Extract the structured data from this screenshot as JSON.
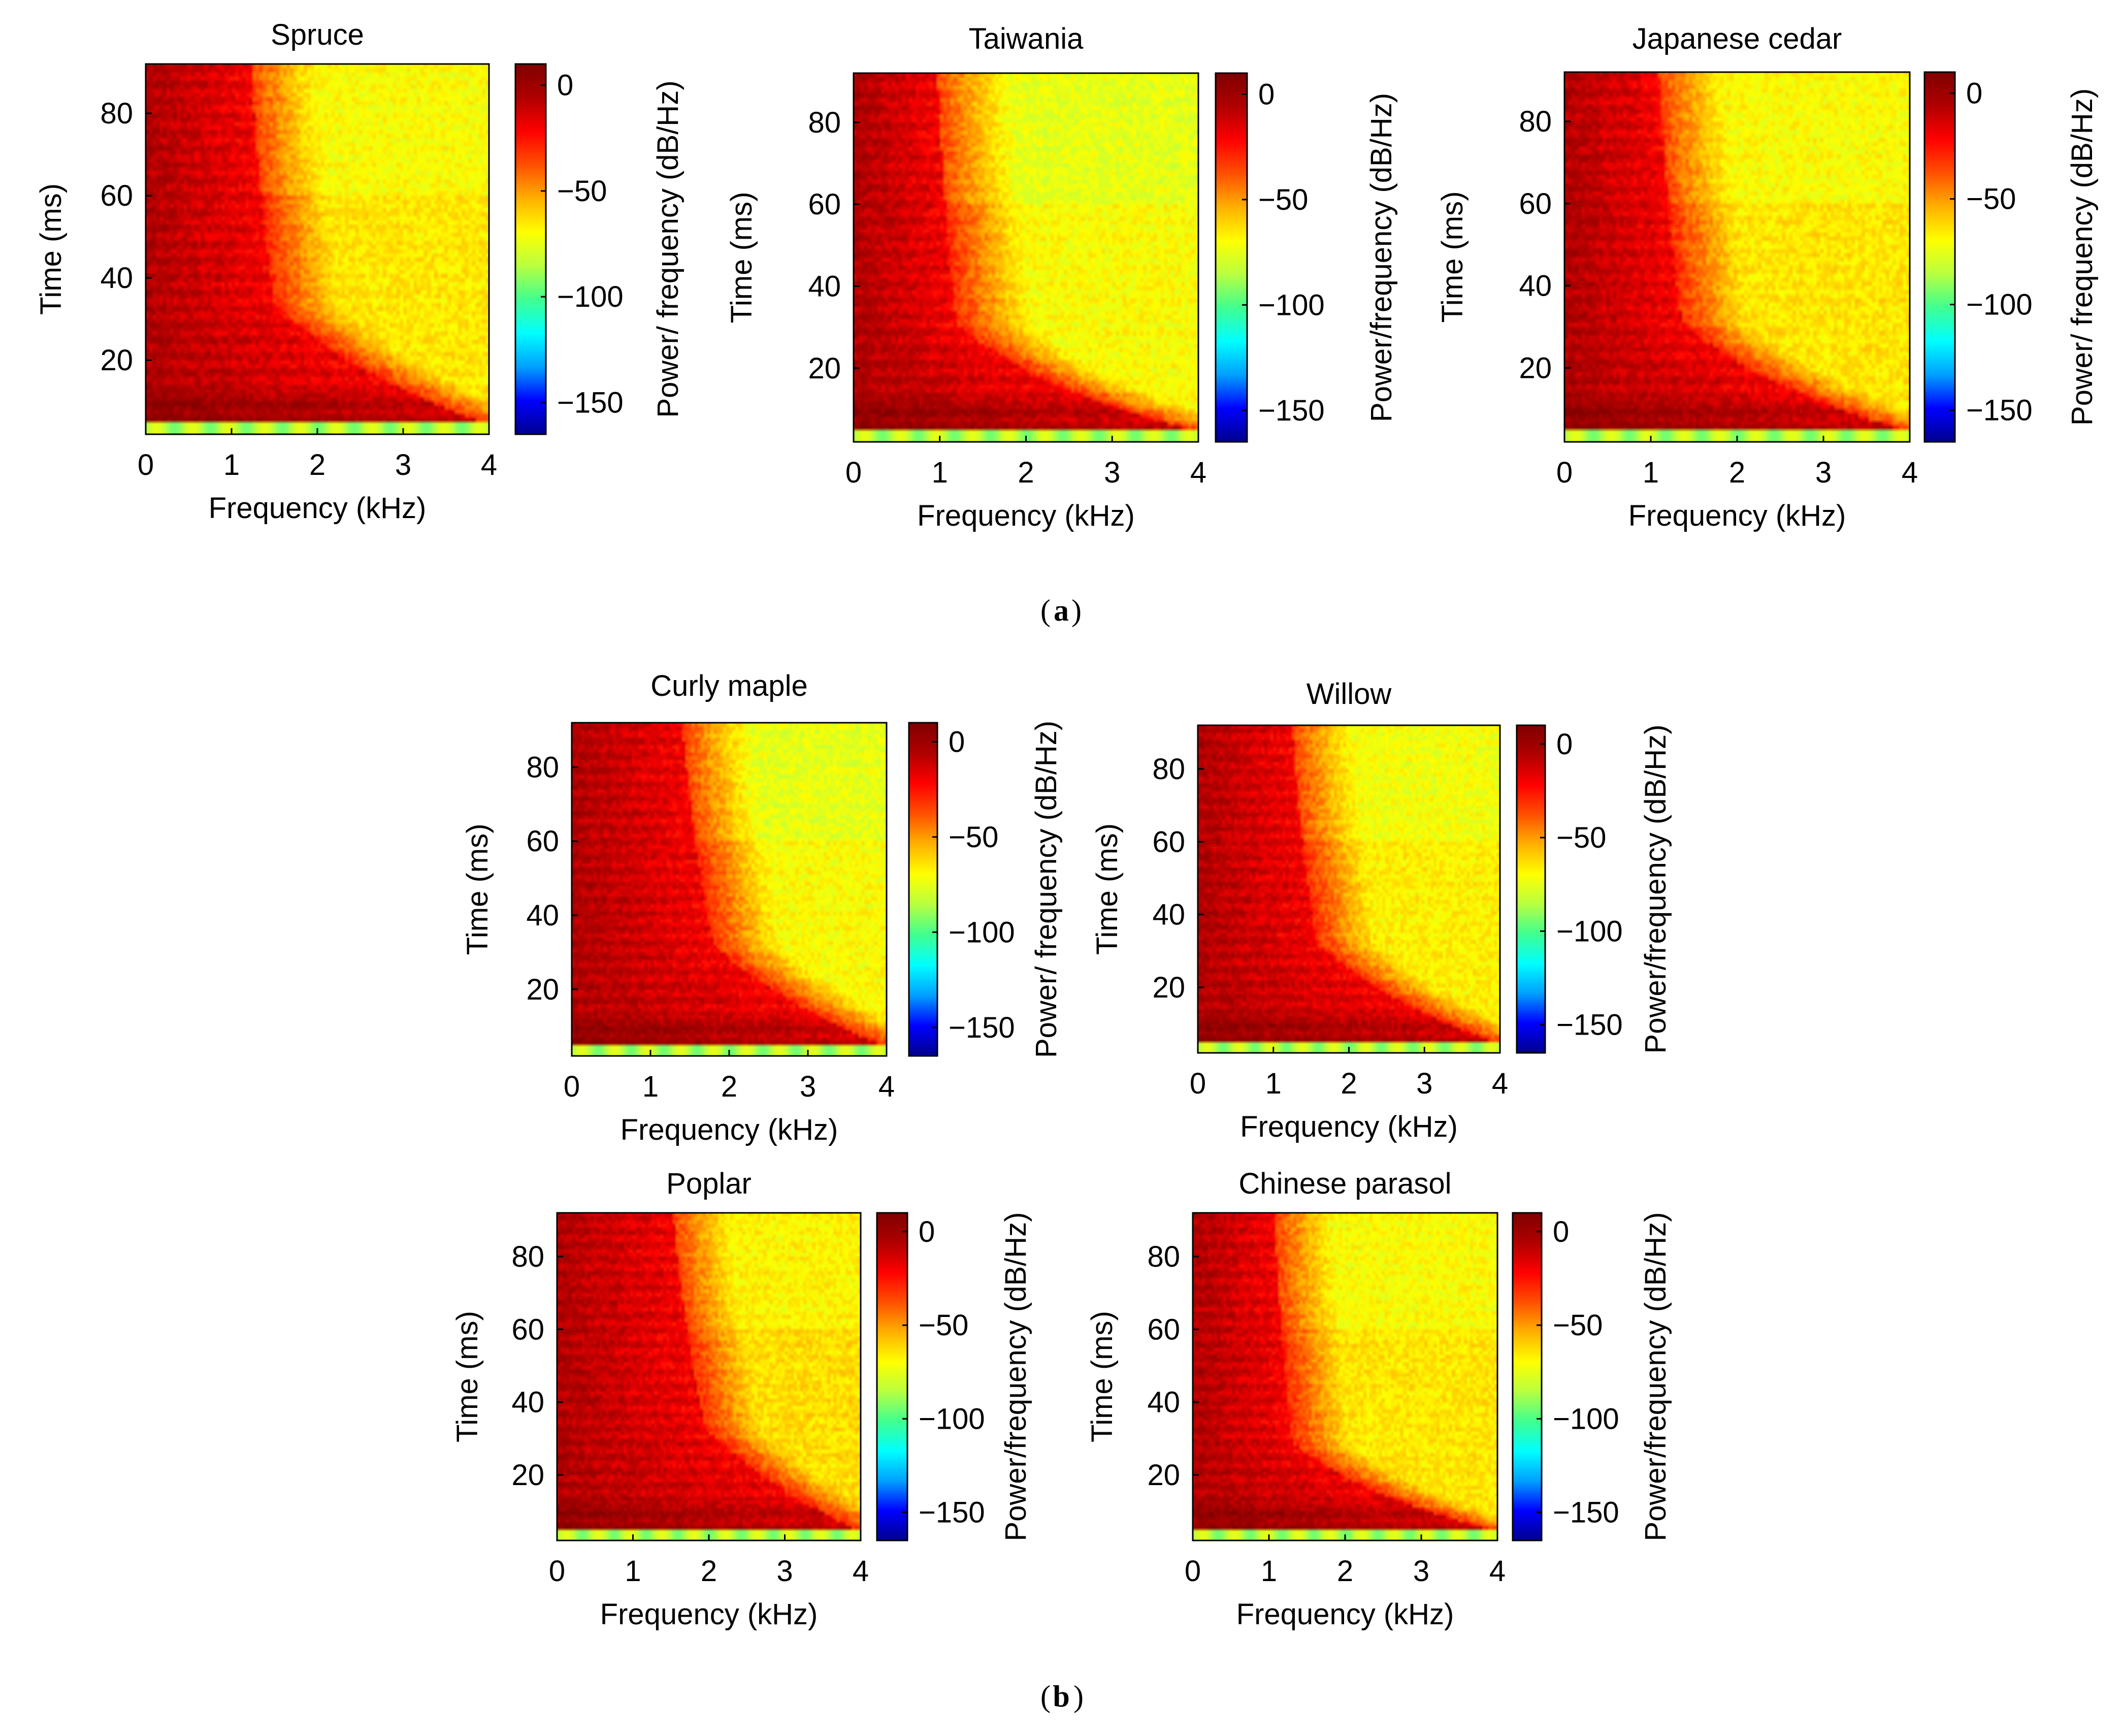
{
  "panel_labels": {
    "a": "a",
    "b": "b"
  },
  "colors": {
    "colormap": [
      "#00008f",
      "#0000ff",
      "#00a0ff",
      "#00ffff",
      "#40ff90",
      "#b8ff40",
      "#ffff00",
      "#ffb000",
      "#ff5000",
      "#ff0000",
      "#b00000",
      "#800000"
    ]
  },
  "chart_data": [
    {
      "type": "heatmap",
      "title": "Spruce",
      "panel": "a",
      "xlabel": "Frequency (kHz)",
      "ylabel": "Time (ms)",
      "xlim": [
        0,
        4
      ],
      "ylim": [
        2,
        92
      ],
      "x_ticks": [
        "0",
        "1",
        "2",
        "3",
        "4"
      ],
      "y_ticks": [
        "20",
        "40",
        "60",
        "80"
      ],
      "colorbar": {
        "label": "Power/ frequency (dB/Hz)",
        "range": [
          -165,
          10
        ],
        "ticks": [
          "0",
          "−50",
          "−100",
          "−150"
        ]
      },
      "pattern": {
        "red_band_khz": 1.0,
        "tail_khz": 1.8,
        "tail_time_ms": 30,
        "base_db": -60
      }
    },
    {
      "type": "heatmap",
      "title": "Taiwania",
      "panel": "a",
      "xlabel": "Frequency (kHz)",
      "ylabel": "Time (ms)",
      "xlim": [
        0,
        4
      ],
      "ylim": [
        2,
        92
      ],
      "x_ticks": [
        "0",
        "1",
        "2",
        "3",
        "4"
      ],
      "y_ticks": [
        "20",
        "40",
        "60",
        "80"
      ],
      "colorbar": {
        "label": "Power/frequency (dB/Hz)",
        "range": [
          -165,
          10
        ],
        "ticks": [
          "0",
          "−50",
          "−100",
          "−150"
        ]
      },
      "pattern": {
        "red_band_khz": 0.8,
        "tail_khz": 1.4,
        "tail_time_ms": 22,
        "base_db": -65
      }
    },
    {
      "type": "heatmap",
      "title": "Japanese cedar",
      "panel": "a",
      "xlabel": "Frequency (kHz)",
      "ylabel": "Time (ms)",
      "xlim": [
        0,
        4
      ],
      "ylim": [
        2,
        92
      ],
      "x_ticks": [
        "0",
        "1",
        "2",
        "3",
        "4"
      ],
      "y_ticks": [
        "20",
        "40",
        "60",
        "80"
      ],
      "colorbar": {
        "label": "Power/ frequency (dB/Hz)",
        "range": [
          -165,
          10
        ],
        "ticks": [
          "0",
          "−50",
          "−100",
          "−150"
        ]
      },
      "pattern": {
        "red_band_khz": 0.9,
        "tail_khz": 1.6,
        "tail_time_ms": 25,
        "base_db": -60
      }
    },
    {
      "type": "heatmap",
      "title": "Curly maple",
      "panel": "b",
      "xlabel": "Frequency (kHz)",
      "ylabel": "Time (ms)",
      "xlim": [
        0,
        4
      ],
      "ylim": [
        2,
        92
      ],
      "x_ticks": [
        "0",
        "1",
        "2",
        "3",
        "4"
      ],
      "y_ticks": [
        "20",
        "40",
        "60",
        "80"
      ],
      "colorbar": {
        "label": "Power/ frequency (dB/Hz)",
        "range": [
          -165,
          10
        ],
        "ticks": [
          "0",
          "−50",
          "−100",
          "−150"
        ]
      },
      "pattern": {
        "red_band_khz": 1.1,
        "tail_khz": 2.2,
        "tail_time_ms": 35,
        "base_db": -65
      }
    },
    {
      "type": "heatmap",
      "title": "Willow",
      "panel": "b",
      "xlabel": "Frequency (kHz)",
      "ylabel": "Time (ms)",
      "xlim": [
        0,
        4
      ],
      "ylim": [
        2,
        92
      ],
      "x_ticks": [
        "0",
        "1",
        "2",
        "3",
        "4"
      ],
      "y_ticks": [
        "20",
        "40",
        "60",
        "80"
      ],
      "colorbar": {
        "label": "Power/frequency (dB/Hz)",
        "range": [
          -165,
          10
        ],
        "ticks": [
          "0",
          "−50",
          "−100",
          "−150"
        ]
      },
      "pattern": {
        "red_band_khz": 1.0,
        "tail_khz": 1.9,
        "tail_time_ms": 30,
        "base_db": -62
      }
    },
    {
      "type": "heatmap",
      "title": "Poplar",
      "panel": "b",
      "xlabel": "Frequency (kHz)",
      "ylabel": "Time (ms)",
      "xlim": [
        0,
        4
      ],
      "ylim": [
        2,
        92
      ],
      "x_ticks": [
        "0",
        "1",
        "2",
        "3",
        "4"
      ],
      "y_ticks": [
        "20",
        "40",
        "60",
        "80"
      ],
      "colorbar": {
        "label": "Power/frequency (dB/Hz)",
        "range": [
          -165,
          10
        ],
        "ticks": [
          "0",
          "−50",
          "−100",
          "−150"
        ]
      },
      "pattern": {
        "red_band_khz": 1.2,
        "tail_khz": 2.4,
        "tail_time_ms": 40,
        "base_db": -58
      }
    },
    {
      "type": "heatmap",
      "title": "Chinese parasol",
      "panel": "b",
      "xlabel": "Frequency (kHz)",
      "ylabel": "Time (ms)",
      "xlim": [
        0,
        4
      ],
      "ylim": [
        2,
        92
      ],
      "x_ticks": [
        "0",
        "1",
        "2",
        "3",
        "4"
      ],
      "y_ticks": [
        "20",
        "40",
        "60",
        "80"
      ],
      "colorbar": {
        "label": "Power/frequency (dB/Hz)",
        "range": [
          -165,
          10
        ],
        "ticks": [
          "0",
          "−50",
          "−100",
          "−150"
        ]
      },
      "pattern": {
        "red_band_khz": 0.9,
        "tail_khz": 1.5,
        "tail_time_ms": 22,
        "base_db": -60
      }
    }
  ]
}
